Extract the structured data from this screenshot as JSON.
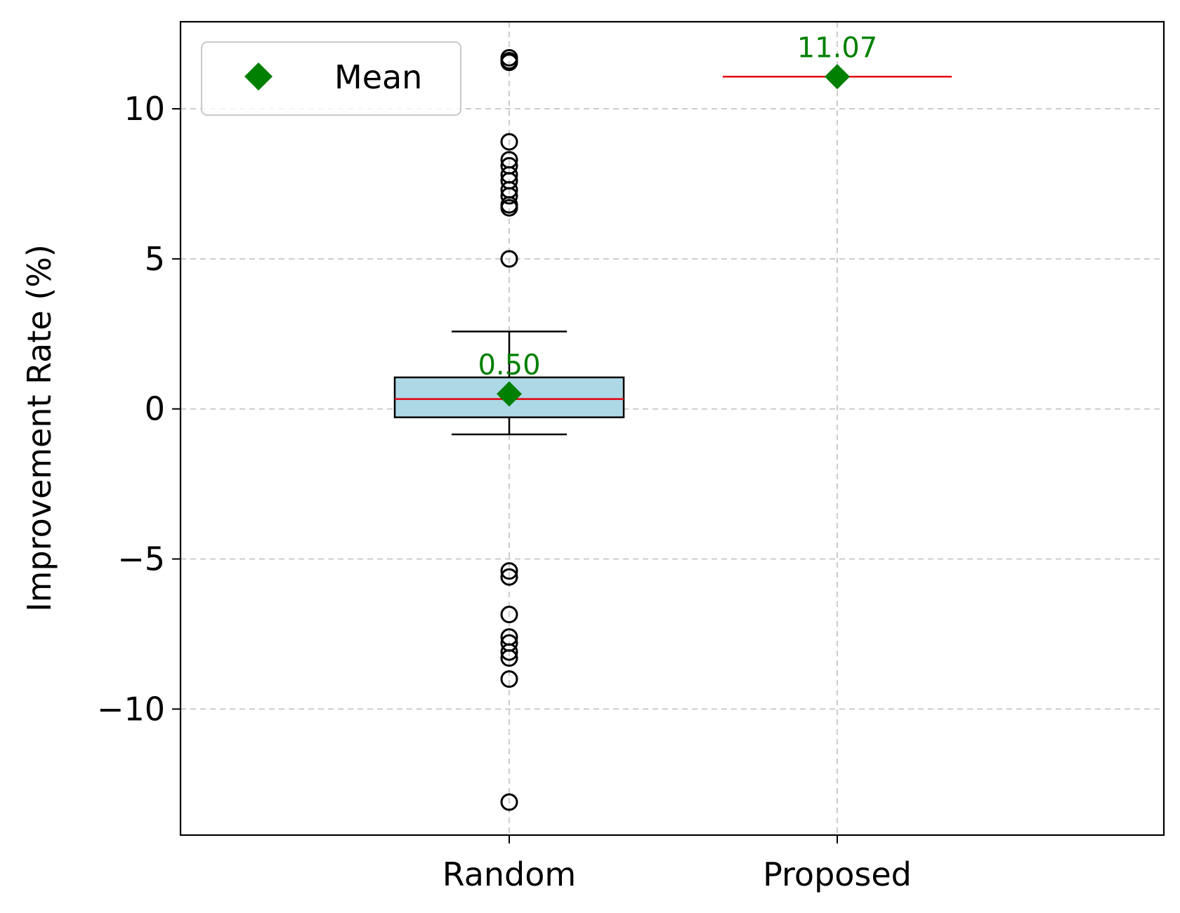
{
  "chart_data": {
    "type": "box",
    "title": "",
    "xlabel": "",
    "ylabel": "Improvement Rate (%)",
    "ylim": [
      -14.2,
      12.9
    ],
    "yticks": [
      -10,
      -5,
      0,
      5,
      10
    ],
    "ytick_labels": [
      "−10",
      "−5",
      "0",
      "5",
      "10"
    ],
    "grid": true,
    "legend": {
      "position": "top-left",
      "entries": [
        {
          "label": "Mean",
          "marker": "diamond"
        }
      ]
    },
    "colors": {
      "box_fill": "#add8e6",
      "median": "#e3000f",
      "mean": "#008000",
      "outline": "#000000",
      "grid": "#cccccc"
    },
    "boxes": [
      {
        "category": "Random",
        "q1": -0.28,
        "median": 0.33,
        "q3": 1.05,
        "whisker_low": -0.85,
        "whisker_high": 2.58,
        "mean": 0.5,
        "mean_label": "0.50",
        "outliers": [
          11.7,
          11.6,
          11.55,
          8.9,
          8.3,
          8.1,
          7.8,
          7.6,
          7.3,
          7.1,
          6.8,
          6.7,
          5.0,
          -5.4,
          -5.6,
          -6.85,
          -7.6,
          -7.8,
          -8.1,
          -8.3,
          -9.0,
          -13.1
        ]
      },
      {
        "category": "Proposed",
        "q1": 11.07,
        "median": 11.07,
        "q3": 11.07,
        "whisker_low": 11.07,
        "whisker_high": 11.07,
        "mean": 11.07,
        "mean_label": "11.07",
        "outliers": []
      }
    ]
  }
}
